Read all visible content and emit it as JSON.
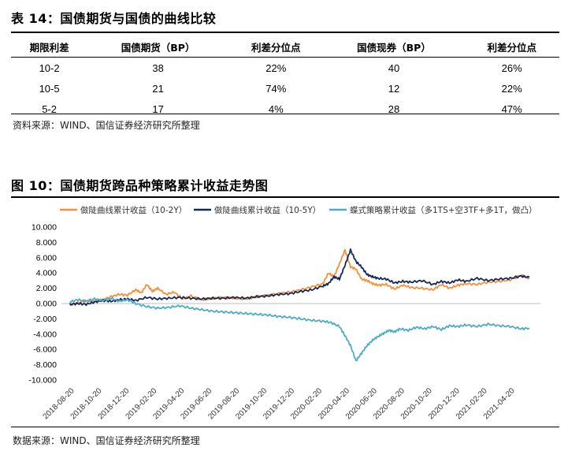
{
  "table": {
    "title": "表 14：国债期货与国债的曲线比较",
    "headers": [
      "期限利差",
      "国债期货（BP）",
      "利差分位点",
      "国债现券（BP）",
      "利差分位点"
    ],
    "rows": [
      [
        "10-2",
        "38",
        "22%",
        "40",
        "26%"
      ],
      [
        "10-5",
        "21",
        "74%",
        "12",
        "22%"
      ],
      [
        "5-2",
        "17",
        "4%",
        "28",
        "47%"
      ]
    ],
    "source": "资料来源：WIND、国信证券经济研究所整理"
  },
  "figure": {
    "title": "图 10：国债期货跨品种策略累计收益走势图",
    "source": "数据来源：WIND、国信证券经济研究所整理"
  },
  "chart_data": {
    "type": "line",
    "title": "",
    "xlabel": "",
    "ylabel": "",
    "ylim": [
      -10000,
      10000
    ],
    "y_ticks": [
      "10.000",
      "8.000",
      "6.000",
      "4.000",
      "2.000",
      "0.000",
      "-2.000",
      "-4.000",
      "-6.000",
      "-8.000",
      "-10.000"
    ],
    "y_tick_values": [
      10000,
      8000,
      6000,
      4000,
      2000,
      0,
      -2000,
      -4000,
      -6000,
      -8000,
      -10000
    ],
    "x_ticks": [
      "2018-08-20",
      "2018-10-20",
      "2018-12-20",
      "2019-02-20",
      "2019-04-20",
      "2019-06-20",
      "2019-08-20",
      "2019-10-20",
      "2019-12-20",
      "2020-02-20",
      "2020-04-20",
      "2020-06-20",
      "2020-08-20",
      "2020-10-20",
      "2020-12-20",
      "2021-02-20",
      "2021-04-20"
    ],
    "x_range": [
      -0.3,
      17.1
    ],
    "legend_position": "top",
    "grid": false,
    "series": [
      {
        "name": "做陡曲线累计收益（10-2Y）",
        "color": "#F5913A",
        "x": [
          0.0,
          0.3,
          0.6,
          0.9,
          1.2,
          1.5,
          1.8,
          2.1,
          2.4,
          2.6,
          2.8,
          3.0,
          3.2,
          3.5,
          3.8,
          4.1,
          4.4,
          4.8,
          5.2,
          5.6,
          6.0,
          6.4,
          6.8,
          7.2,
          7.6,
          8.0,
          8.4,
          8.8,
          9.2,
          9.4,
          9.6,
          9.8,
          10.0,
          10.2,
          10.4,
          10.6,
          10.8,
          11.0,
          11.2,
          11.5,
          11.8,
          12.1,
          12.4,
          12.8,
          13.2,
          13.5,
          13.8,
          14.1,
          14.4,
          14.8,
          15.2,
          15.6,
          16.0,
          16.4,
          16.7
        ],
        "values": [
          -200,
          100,
          400,
          300,
          500,
          900,
          1200,
          1100,
          1800,
          1400,
          2500,
          1600,
          2000,
          1200,
          1500,
          600,
          1000,
          500,
          700,
          800,
          700,
          600,
          900,
          1100,
          1300,
          1500,
          1800,
          2200,
          2600,
          4000,
          3500,
          5200,
          7000,
          4800,
          4500,
          3200,
          3000,
          2600,
          2400,
          2500,
          1900,
          2400,
          2100,
          2000,
          1800,
          2500,
          2000,
          2400,
          2600,
          2500,
          2800,
          2900,
          3100,
          3700,
          3300
        ]
      },
      {
        "name": "做陡曲线累计收益（10-5Y）",
        "color": "#14285A",
        "x": [
          0.0,
          0.3,
          0.6,
          0.9,
          1.2,
          1.5,
          1.8,
          2.1,
          2.4,
          2.8,
          3.2,
          3.6,
          4.0,
          4.4,
          4.8,
          5.2,
          5.6,
          6.0,
          6.4,
          6.8,
          7.2,
          7.6,
          8.0,
          8.4,
          8.8,
          9.2,
          9.4,
          9.6,
          9.8,
          10.0,
          10.2,
          10.4,
          10.6,
          10.8,
          11.0,
          11.2,
          11.5,
          11.8,
          12.1,
          12.4,
          12.8,
          13.2,
          13.5,
          13.8,
          14.1,
          14.4,
          14.8,
          15.2,
          15.6,
          16.0,
          16.4,
          16.7
        ],
        "values": [
          -100,
          0,
          -100,
          200,
          400,
          300,
          500,
          600,
          400,
          800,
          600,
          700,
          800,
          700,
          600,
          700,
          700,
          800,
          700,
          900,
          1000,
          1200,
          1300,
          1600,
          1800,
          2300,
          2600,
          3500,
          3200,
          5000,
          7000,
          5500,
          4800,
          3800,
          3500,
          3300,
          3200,
          2700,
          2900,
          2800,
          3000,
          2500,
          2900,
          2700,
          3100,
          2900,
          3300,
          3000,
          3200,
          3300,
          3600,
          3400
        ]
      },
      {
        "name": "蝶式策略累计收益（多1TS+空3TF+多1T，做凸）",
        "color": "#4BACC6",
        "x": [
          0.0,
          0.3,
          0.6,
          0.9,
          1.2,
          1.5,
          1.8,
          2.1,
          2.4,
          2.8,
          3.2,
          3.6,
          4.0,
          4.4,
          4.8,
          5.2,
          5.6,
          6.0,
          6.4,
          6.8,
          7.2,
          7.6,
          8.0,
          8.4,
          8.8,
          9.2,
          9.5,
          9.8,
          10.0,
          10.2,
          10.4,
          10.6,
          10.8,
          11.0,
          11.2,
          11.4,
          11.6,
          11.8,
          12.0,
          12.3,
          12.6,
          12.9,
          13.2,
          13.5,
          13.8,
          14.1,
          14.4,
          14.8,
          15.2,
          15.6,
          16.0,
          16.4,
          16.7
        ],
        "values": [
          200,
          500,
          300,
          600,
          400,
          700,
          300,
          500,
          0,
          -400,
          -600,
          -500,
          -300,
          -600,
          -800,
          -1000,
          -1100,
          -1200,
          -1300,
          -1400,
          -1500,
          -1700,
          -1800,
          -2000,
          -2200,
          -2300,
          -2500,
          -3000,
          -4200,
          -5500,
          -7500,
          -6500,
          -5500,
          -4800,
          -4300,
          -3900,
          -3500,
          -3700,
          -3300,
          -3500,
          -3100,
          -3300,
          -3000,
          -3400,
          -2900,
          -3000,
          -2800,
          -3000,
          -2700,
          -2900,
          -3000,
          -3300,
          -3200
        ]
      }
    ]
  }
}
